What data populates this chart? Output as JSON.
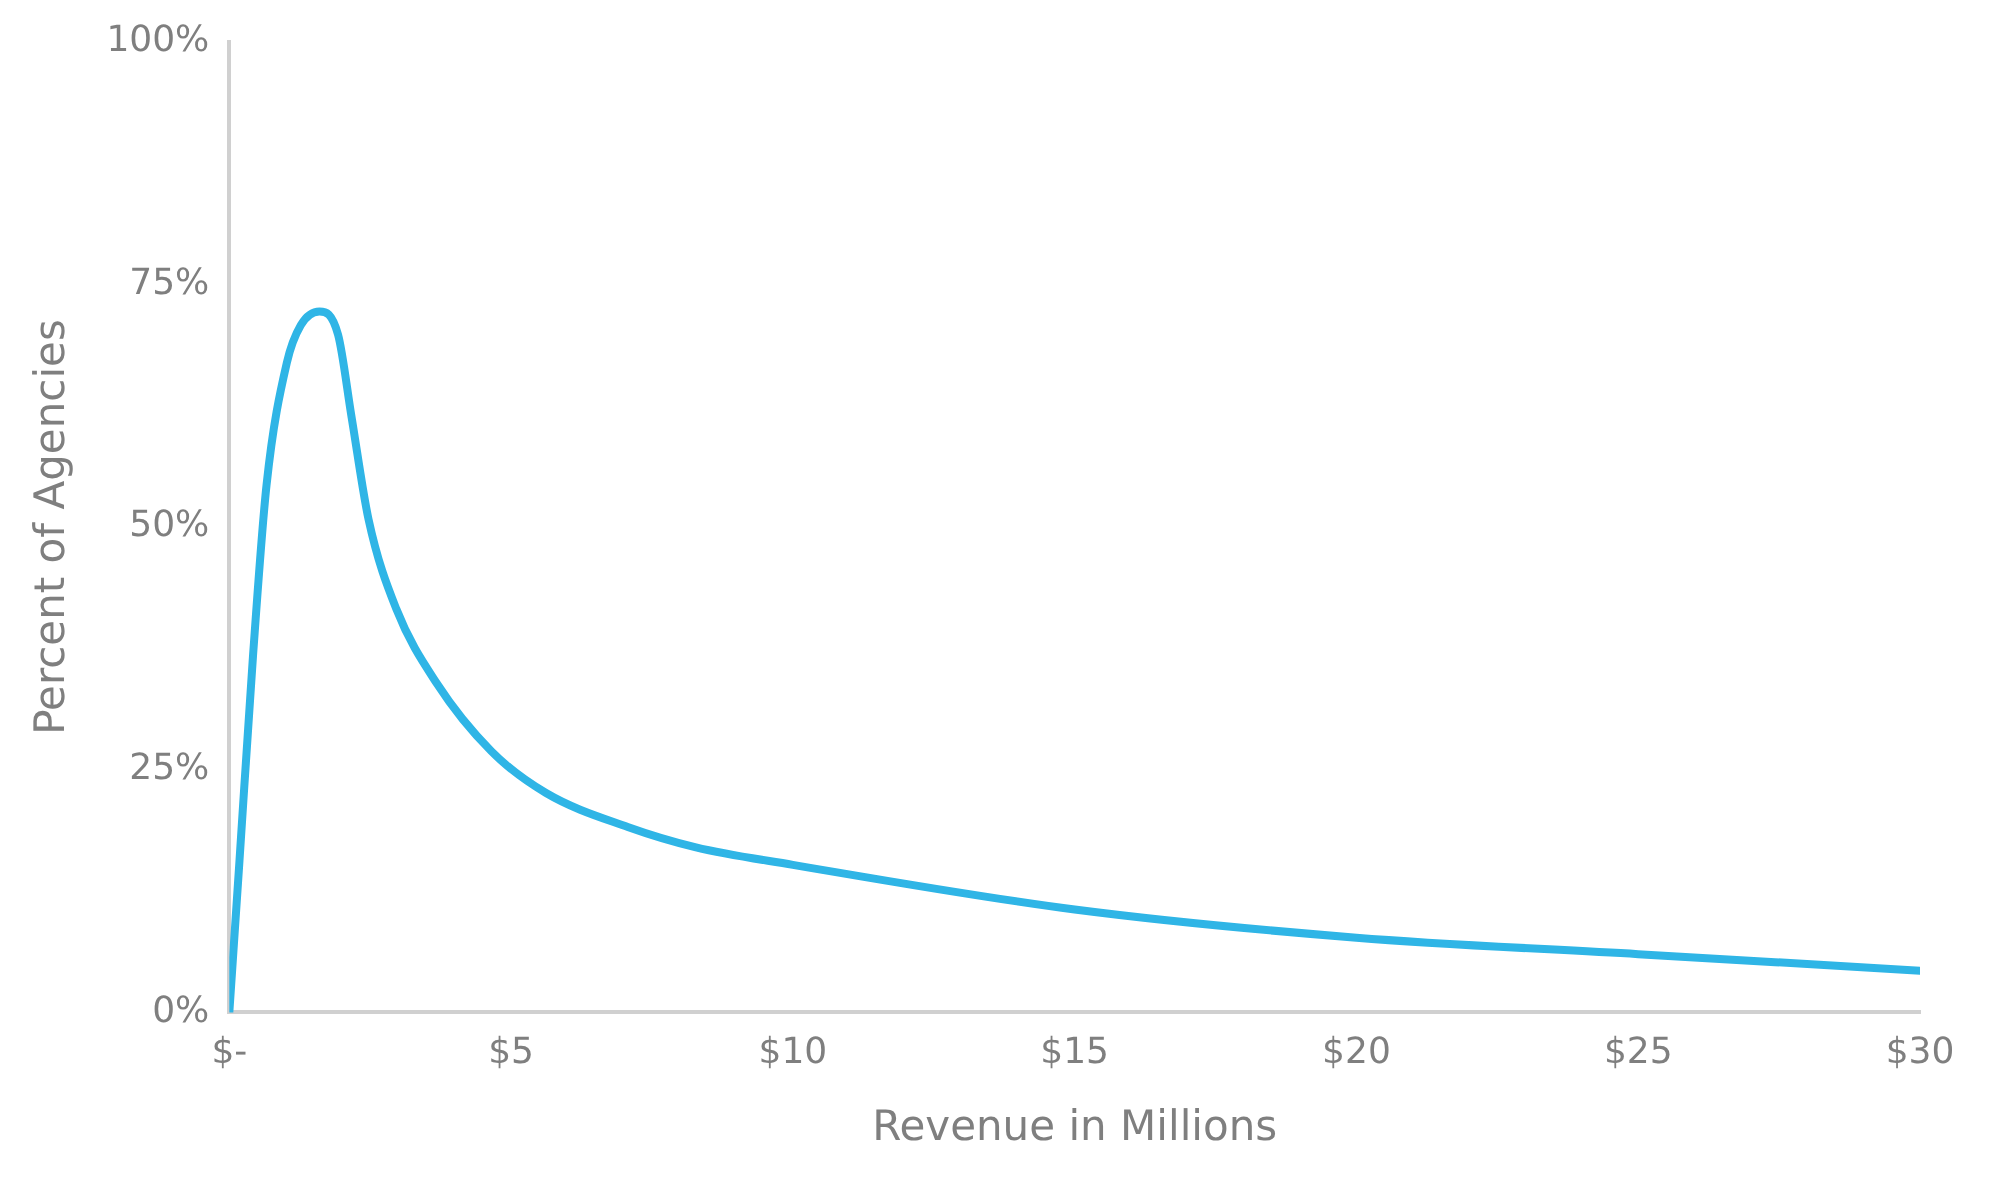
{
  "chart_data": {
    "type": "line",
    "xlabel": "Revenue in Millions",
    "ylabel": "Percent of Agencies",
    "series": [
      {
        "color": "#2fb5e6",
        "x": [
          0,
          0.18,
          0.42,
          0.66,
          1.02,
          1.27,
          1.6,
          1.93,
          2.17,
          2.47,
          2.96,
          3.68,
          4.65,
          5.62,
          7.07,
          8.28,
          10,
          15,
          20,
          25,
          30
        ],
        "values": [
          0,
          15.6,
          36.7,
          54.3,
          66.9,
          70.8,
          72.2,
          69.8,
          61.3,
          50.8,
          41.6,
          33.9,
          26.9,
          22.6,
          19.1,
          17.0,
          15.2,
          10.6,
          7.7,
          6.0,
          4.3
        ]
      }
    ],
    "xlim": [
      0,
      30
    ],
    "xticks": [
      {
        "value": 0,
        "label": "$-"
      },
      {
        "value": 5,
        "label": "$5"
      },
      {
        "value": 10,
        "label": "$10"
      },
      {
        "value": 15,
        "label": "$15"
      },
      {
        "value": 20,
        "label": "$20"
      },
      {
        "value": 25,
        "label": "$25"
      },
      {
        "value": 30,
        "label": "$30"
      }
    ],
    "ylim": [
      0,
      100
    ],
    "yticks": [
      {
        "value": 0,
        "label": "0%"
      },
      {
        "value": 25,
        "label": "25%"
      },
      {
        "value": 50,
        "label": "50%"
      },
      {
        "value": 75,
        "label": "75%"
      },
      {
        "value": 100,
        "label": "100%"
      }
    ],
    "grid": false,
    "legend": false,
    "marker": "none",
    "line_style": "solid"
  }
}
